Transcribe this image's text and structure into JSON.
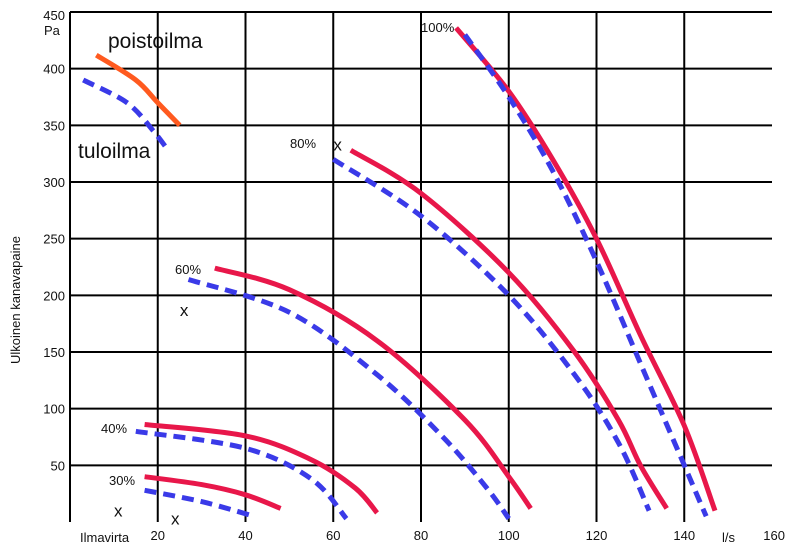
{
  "chart_data": {
    "type": "line",
    "ylabel": "Ulkoinen kanavapaine",
    "y_unit": "Pa",
    "xlabel": "Ilmavirta",
    "x_unit": "l/s",
    "xlim": [
      0,
      160
    ],
    "ylim": [
      0,
      450
    ],
    "x_ticks": [
      "20",
      "40",
      "60",
      "80",
      "100",
      "120",
      "140",
      "160"
    ],
    "y_ticks": [
      "50",
      "100",
      "150",
      "200",
      "250",
      "300",
      "350",
      "400",
      "450"
    ],
    "grid": true,
    "legend": [
      {
        "name": "poistoilma",
        "color": "#e8174a",
        "style": "solid",
        "swatch_color": "#ff5a1f"
      },
      {
        "name": "tuloilma",
        "color": "#3a3ae8",
        "style": "dashed"
      }
    ],
    "series": [
      {
        "name": "poistoilma",
        "level": "100%",
        "points": [
          [
            88,
            436
          ],
          [
            100,
            380
          ],
          [
            110,
            320
          ],
          [
            120,
            250
          ],
          [
            130,
            165
          ],
          [
            140,
            85
          ],
          [
            147,
            10
          ]
        ]
      },
      {
        "name": "tuloilma",
        "level": "100%",
        "points": [
          [
            90,
            430
          ],
          [
            100,
            375
          ],
          [
            110,
            310
          ],
          [
            120,
            230
          ],
          [
            130,
            140
          ],
          [
            140,
            50
          ],
          [
            145,
            5
          ]
        ]
      },
      {
        "name": "poistoilma",
        "level": "80%",
        "points": [
          [
            64,
            328
          ],
          [
            80,
            290
          ],
          [
            100,
            220
          ],
          [
            115,
            150
          ],
          [
            125,
            90
          ],
          [
            130,
            50
          ],
          [
            136,
            12
          ]
        ]
      },
      {
        "name": "tuloilma",
        "level": "80%",
        "points": [
          [
            60,
            320
          ],
          [
            80,
            270
          ],
          [
            100,
            200
          ],
          [
            115,
            130
          ],
          [
            125,
            70
          ],
          [
            132,
            10
          ]
        ]
      },
      {
        "name": "poistoilma",
        "level": "60%",
        "points": [
          [
            33,
            224
          ],
          [
            50,
            205
          ],
          [
            70,
            160
          ],
          [
            90,
            90
          ],
          [
            100,
            40
          ],
          [
            105,
            12
          ]
        ]
      },
      {
        "name": "tuloilma",
        "level": "60%",
        "points": [
          [
            27,
            214
          ],
          [
            50,
            185
          ],
          [
            70,
            130
          ],
          [
            85,
            75
          ],
          [
            95,
            30
          ],
          [
            100,
            3
          ]
        ]
      },
      {
        "name": "poistoilma",
        "level": "40%",
        "points": [
          [
            17,
            86
          ],
          [
            40,
            76
          ],
          [
            55,
            55
          ],
          [
            65,
            30
          ],
          [
            70,
            8
          ]
        ]
      },
      {
        "name": "tuloilma",
        "level": "40%",
        "points": [
          [
            15,
            80
          ],
          [
            40,
            65
          ],
          [
            55,
            38
          ],
          [
            63,
            3
          ]
        ]
      },
      {
        "name": "poistoilma",
        "level": "30%",
        "points": [
          [
            17,
            40
          ],
          [
            30,
            33
          ],
          [
            40,
            24
          ],
          [
            48,
            12
          ]
        ]
      },
      {
        "name": "tuloilma",
        "level": "30%",
        "points": [
          [
            17,
            28
          ],
          [
            30,
            18
          ],
          [
            42,
            5
          ]
        ]
      },
      {
        "name": "poistoilma",
        "level": "",
        "points": [
          [
            6,
            412
          ],
          [
            15,
            390
          ],
          [
            20,
            370
          ],
          [
            25,
            350
          ]
        ]
      },
      {
        "name": "tuloilma",
        "level": "",
        "points": [
          [
            3,
            390
          ],
          [
            13,
            370
          ],
          [
            19,
            345
          ],
          [
            22,
            330
          ]
        ]
      }
    ],
    "annotations": {
      "levels": [
        "100%",
        "80%",
        "60%",
        "40%",
        "30%"
      ],
      "operating_point_mark": "x",
      "operating_points": [
        [
          61,
          333
        ],
        [
          26,
          187
        ],
        [
          11,
          10
        ],
        [
          24,
          3
        ]
      ]
    }
  }
}
